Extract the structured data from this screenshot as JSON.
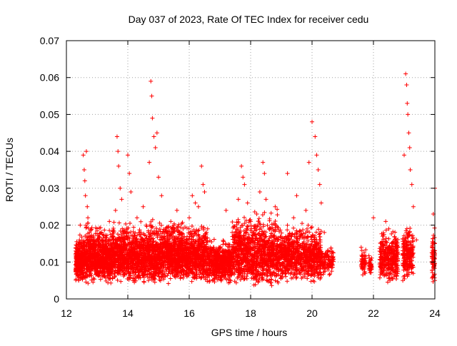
{
  "chart_data": {
    "type": "scatter",
    "title": "Day 037 of 2023, Rate Of TEC Index for receiver cedu",
    "xlabel": "GPS time / hours",
    "ylabel": "ROTI / TECUs",
    "xlim": [
      12,
      24
    ],
    "ylim": [
      0,
      0.07
    ],
    "x_ticks": [
      12,
      14,
      16,
      18,
      20,
      22,
      24
    ],
    "x_tick_labels": [
      "12",
      "14",
      "16",
      "18",
      "20",
      "22",
      "24"
    ],
    "y_ticks": [
      0,
      0.01,
      0.02,
      0.03,
      0.04,
      0.05,
      0.06,
      0.07
    ],
    "y_tick_labels": [
      "0",
      "0.01",
      "0.02",
      "0.03",
      "0.04",
      "0.05",
      "0.06",
      "0.07"
    ],
    "grid": true,
    "marker": "+",
    "color": "#ff0000",
    "series": [
      {
        "name": "ROTI",
        "points": [
          [
            12.3,
            0.008
          ],
          [
            12.35,
            0.012
          ],
          [
            12.4,
            0.005
          ],
          [
            12.45,
            0.02
          ],
          [
            12.5,
            0.015
          ],
          [
            12.55,
            0.039
          ],
          [
            12.58,
            0.035
          ],
          [
            12.6,
            0.032
          ],
          [
            12.62,
            0.028
          ],
          [
            12.65,
            0.04
          ],
          [
            12.68,
            0.025
          ],
          [
            12.7,
            0.022
          ],
          [
            12.75,
            0.018
          ],
          [
            12.8,
            0.012
          ],
          [
            12.9,
            0.009
          ],
          [
            13.0,
            0.019
          ],
          [
            13.1,
            0.011
          ],
          [
            13.2,
            0.016
          ],
          [
            13.3,
            0.013
          ],
          [
            13.4,
            0.021
          ],
          [
            13.5,
            0.009
          ],
          [
            13.6,
            0.024
          ],
          [
            13.65,
            0.044
          ],
          [
            13.68,
            0.04
          ],
          [
            13.7,
            0.036
          ],
          [
            13.75,
            0.03
          ],
          [
            13.8,
            0.027
          ],
          [
            13.9,
            0.018
          ],
          [
            14.0,
            0.039
          ],
          [
            14.05,
            0.034
          ],
          [
            14.1,
            0.029
          ],
          [
            14.2,
            0.017
          ],
          [
            14.3,
            0.022
          ],
          [
            14.4,
            0.014
          ],
          [
            14.5,
            0.025
          ],
          [
            14.6,
            0.02
          ],
          [
            14.7,
            0.037
          ],
          [
            14.75,
            0.059
          ],
          [
            14.78,
            0.055
          ],
          [
            14.8,
            0.049
          ],
          [
            14.85,
            0.044
          ],
          [
            14.9,
            0.041
          ],
          [
            14.95,
            0.045
          ],
          [
            15.0,
            0.033
          ],
          [
            15.1,
            0.028
          ],
          [
            15.2,
            0.018
          ],
          [
            15.3,
            0.013
          ],
          [
            15.4,
            0.021
          ],
          [
            15.5,
            0.016
          ],
          [
            15.6,
            0.024
          ],
          [
            15.7,
            0.011
          ],
          [
            15.8,
            0.019
          ],
          [
            15.9,
            0.015
          ],
          [
            16.0,
            0.022
          ],
          [
            16.1,
            0.028
          ],
          [
            16.2,
            0.026
          ],
          [
            16.3,
            0.025
          ],
          [
            16.4,
            0.036
          ],
          [
            16.45,
            0.031
          ],
          [
            16.5,
            0.029
          ],
          [
            16.6,
            0.019
          ],
          [
            16.8,
            0.014
          ],
          [
            17.0,
            0.012
          ],
          [
            17.2,
            0.024
          ],
          [
            17.4,
            0.018
          ],
          [
            17.6,
            0.027
          ],
          [
            17.7,
            0.036
          ],
          [
            17.75,
            0.033
          ],
          [
            17.8,
            0.031
          ],
          [
            17.9,
            0.026
          ],
          [
            18.0,
            0.021
          ],
          [
            18.1,
            0.018
          ],
          [
            18.2,
            0.023
          ],
          [
            18.3,
            0.029
          ],
          [
            18.4,
            0.037
          ],
          [
            18.45,
            0.034
          ],
          [
            18.5,
            0.027
          ],
          [
            18.6,
            0.019
          ],
          [
            18.8,
            0.025
          ],
          [
            19.0,
            0.014
          ],
          [
            19.2,
            0.034
          ],
          [
            19.4,
            0.022
          ],
          [
            19.5,
            0.028
          ],
          [
            19.6,
            0.017
          ],
          [
            19.8,
            0.024
          ],
          [
            19.9,
            0.037
          ],
          [
            20.0,
            0.048
          ],
          [
            20.1,
            0.044
          ],
          [
            20.15,
            0.039
          ],
          [
            20.2,
            0.035
          ],
          [
            20.25,
            0.031
          ],
          [
            20.3,
            0.026
          ],
          [
            20.4,
            0.018
          ],
          [
            20.5,
            0.012
          ],
          [
            20.6,
            0.009
          ],
          [
            21.6,
            0.014
          ],
          [
            21.7,
            0.011
          ],
          [
            21.9,
            0.009
          ],
          [
            22.0,
            0.022
          ],
          [
            22.3,
            0.017
          ],
          [
            22.4,
            0.021
          ],
          [
            22.5,
            0.019
          ],
          [
            22.6,
            0.015
          ],
          [
            22.7,
            0.012
          ],
          [
            23.0,
            0.039
          ],
          [
            23.05,
            0.061
          ],
          [
            23.08,
            0.058
          ],
          [
            23.1,
            0.053
          ],
          [
            23.12,
            0.05
          ],
          [
            23.15,
            0.045
          ],
          [
            23.18,
            0.041
          ],
          [
            23.2,
            0.035
          ],
          [
            23.25,
            0.031
          ],
          [
            23.3,
            0.025
          ],
          [
            23.4,
            0.016
          ],
          [
            23.95,
            0.023
          ],
          [
            24.0,
            0.03
          ],
          [
            24.0,
            0.015
          ],
          [
            23.98,
            0.009
          ],
          [
            24.0,
            0.005
          ]
        ],
        "bands": [
          {
            "x_range": [
              12.3,
              12.55
            ],
            "y_range": [
              0.004,
              0.018
            ],
            "count": 260
          },
          {
            "x_range": [
              12.55,
              13.5
            ],
            "y_range": [
              0.004,
              0.022
            ],
            "count": 800
          },
          {
            "x_range": [
              13.5,
              14.7
            ],
            "y_range": [
              0.004,
              0.022
            ],
            "count": 900
          },
          {
            "x_range": [
              14.7,
              15.6
            ],
            "y_range": [
              0.004,
              0.023
            ],
            "count": 700
          },
          {
            "x_range": [
              15.6,
              16.6
            ],
            "y_range": [
              0.004,
              0.022
            ],
            "count": 750
          },
          {
            "x_range": [
              16.6,
              17.4
            ],
            "y_range": [
              0.004,
              0.018
            ],
            "count": 520
          },
          {
            "x_range": [
              17.4,
              18.9
            ],
            "y_range": [
              0.003,
              0.025
            ],
            "count": 1000
          },
          {
            "x_range": [
              18.9,
              20.3
            ],
            "y_range": [
              0.004,
              0.022
            ],
            "count": 850
          },
          {
            "x_range": [
              20.3,
              20.7
            ],
            "y_range": [
              0.006,
              0.016
            ],
            "count": 110
          },
          {
            "x_range": [
              21.6,
              21.75
            ],
            "y_range": [
              0.006,
              0.015
            ],
            "count": 50
          },
          {
            "x_range": [
              21.85,
              21.95
            ],
            "y_range": [
              0.006,
              0.013
            ],
            "count": 35
          },
          {
            "x_range": [
              22.2,
              22.8
            ],
            "y_range": [
              0.004,
              0.02
            ],
            "count": 360
          },
          {
            "x_range": [
              22.95,
              23.3
            ],
            "y_range": [
              0.004,
              0.022
            ],
            "count": 220
          },
          {
            "x_range": [
              23.9,
              24.0
            ],
            "y_range": [
              0.004,
              0.02
            ],
            "count": 70
          }
        ]
      }
    ]
  }
}
